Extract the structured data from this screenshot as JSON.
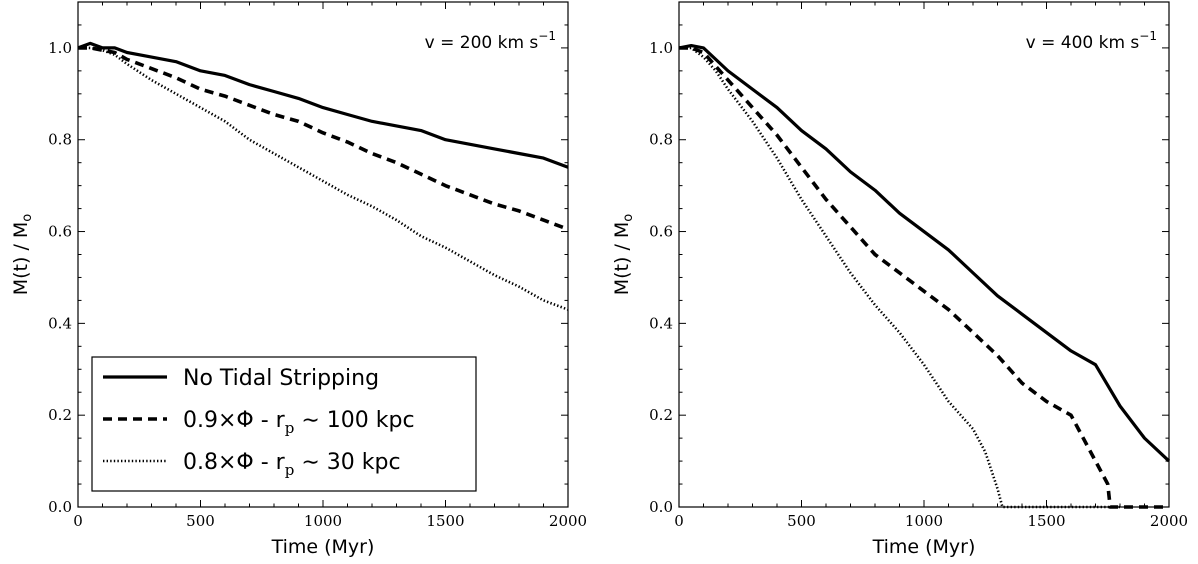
{
  "chart_data": [
    {
      "type": "line",
      "annotation": {
        "prefix": "v = 200 km s",
        "sup": "−1"
      },
      "xlabel": "Time (Myr)",
      "ylabel": "M(t) / M",
      "ylabel_sub": "o",
      "xlim": [
        0,
        2000
      ],
      "ylim": [
        0.0,
        1.1
      ],
      "xticks": [
        0,
        500,
        1000,
        1500,
        2000
      ],
      "xtick_labels": [
        "0",
        "500",
        "1000",
        "1500",
        "2000"
      ],
      "yticks": [
        0.0,
        0.2,
        0.4,
        0.6,
        0.8,
        1.0
      ],
      "ytick_labels": [
        "0.0",
        "0.2",
        "0.4",
        "0.6",
        "0.8",
        "1.0"
      ],
      "legend": {
        "placement": "lower-left",
        "entries": [
          {
            "text": "No Tidal Stripping"
          },
          {
            "pre": "0.9×Φ - r",
            "sub": "p",
            "post": " ∼ 100 kpc"
          },
          {
            "pre": "0.8×Φ - r",
            "sub": "p",
            "post": " ∼ 30 kpc"
          }
        ]
      },
      "series": [
        {
          "style": "solid",
          "x": [
            0,
            50,
            100,
            150,
            200,
            300,
            400,
            500,
            600,
            700,
            800,
            900,
            1000,
            1100,
            1200,
            1300,
            1400,
            1500,
            1600,
            1700,
            1800,
            1900,
            2000
          ],
          "y": [
            1.0,
            1.01,
            1.0,
            1.0,
            0.99,
            0.98,
            0.97,
            0.95,
            0.94,
            0.92,
            0.905,
            0.89,
            0.87,
            0.855,
            0.84,
            0.83,
            0.82,
            0.8,
            0.79,
            0.78,
            0.77,
            0.76,
            0.74
          ]
        },
        {
          "style": "dashed",
          "x": [
            0,
            50,
            100,
            150,
            200,
            300,
            400,
            500,
            600,
            700,
            800,
            900,
            1000,
            1100,
            1200,
            1300,
            1400,
            1500,
            1600,
            1700,
            1800,
            1900,
            2000
          ],
          "y": [
            1.0,
            1.0,
            0.995,
            0.99,
            0.975,
            0.955,
            0.935,
            0.91,
            0.895,
            0.875,
            0.855,
            0.84,
            0.815,
            0.795,
            0.77,
            0.75,
            0.725,
            0.7,
            0.68,
            0.66,
            0.645,
            0.625,
            0.605
          ]
        },
        {
          "style": "dotted",
          "x": [
            0,
            50,
            100,
            150,
            200,
            300,
            400,
            500,
            600,
            700,
            800,
            900,
            1000,
            1100,
            1200,
            1300,
            1400,
            1500,
            1600,
            1700,
            1800,
            1900,
            2000
          ],
          "y": [
            1.0,
            1.0,
            0.995,
            0.985,
            0.965,
            0.93,
            0.9,
            0.87,
            0.84,
            0.8,
            0.77,
            0.74,
            0.71,
            0.68,
            0.655,
            0.625,
            0.59,
            0.565,
            0.535,
            0.505,
            0.48,
            0.45,
            0.43
          ]
        }
      ]
    },
    {
      "type": "line",
      "annotation": {
        "prefix": "v = 400 km s",
        "sup": "−1"
      },
      "xlabel": "Time (Myr)",
      "ylabel": "M(t) / M",
      "ylabel_sub": "o",
      "xlim": [
        0,
        2000
      ],
      "ylim": [
        0.0,
        1.1
      ],
      "xticks": [
        0,
        500,
        1000,
        1500,
        2000
      ],
      "xtick_labels": [
        "0",
        "500",
        "1000",
        "1500",
        "2000"
      ],
      "yticks": [
        0.0,
        0.2,
        0.4,
        0.6,
        0.8,
        1.0
      ],
      "ytick_labels": [
        "0.0",
        "0.2",
        "0.4",
        "0.6",
        "0.8",
        "1.0"
      ],
      "series": [
        {
          "style": "solid",
          "x": [
            0,
            50,
            100,
            150,
            200,
            300,
            400,
            500,
            600,
            700,
            800,
            900,
            1000,
            1100,
            1200,
            1300,
            1400,
            1500,
            1600,
            1700,
            1800,
            1900,
            2000
          ],
          "y": [
            1.0,
            1.005,
            1.0,
            0.975,
            0.95,
            0.91,
            0.87,
            0.82,
            0.78,
            0.73,
            0.69,
            0.64,
            0.6,
            0.56,
            0.51,
            0.46,
            0.42,
            0.38,
            0.34,
            0.31,
            0.22,
            0.15,
            0.1
          ]
        },
        {
          "style": "dashed",
          "x": [
            0,
            50,
            100,
            150,
            200,
            300,
            400,
            500,
            600,
            700,
            800,
            900,
            1000,
            1100,
            1200,
            1300,
            1400,
            1500,
            1600,
            1700,
            1750,
            1760,
            1800,
            1900,
            2000
          ],
          "y": [
            1.0,
            1.0,
            0.99,
            0.96,
            0.93,
            0.87,
            0.81,
            0.74,
            0.67,
            0.61,
            0.55,
            0.51,
            0.47,
            0.43,
            0.38,
            0.33,
            0.27,
            0.23,
            0.2,
            0.1,
            0.05,
            0.0,
            0.0,
            0.0,
            0.0
          ]
        },
        {
          "style": "dotted",
          "x": [
            0,
            50,
            100,
            150,
            200,
            300,
            400,
            500,
            600,
            700,
            800,
            900,
            1000,
            1100,
            1200,
            1250,
            1300,
            1320,
            1400,
            1500,
            1600,
            1700,
            1800
          ],
          "y": [
            1.0,
            1.0,
            0.98,
            0.95,
            0.91,
            0.84,
            0.76,
            0.67,
            0.59,
            0.51,
            0.44,
            0.38,
            0.31,
            0.23,
            0.17,
            0.12,
            0.04,
            0.0,
            0.0,
            0.0,
            0.0,
            0.0,
            0.0
          ]
        }
      ]
    }
  ]
}
